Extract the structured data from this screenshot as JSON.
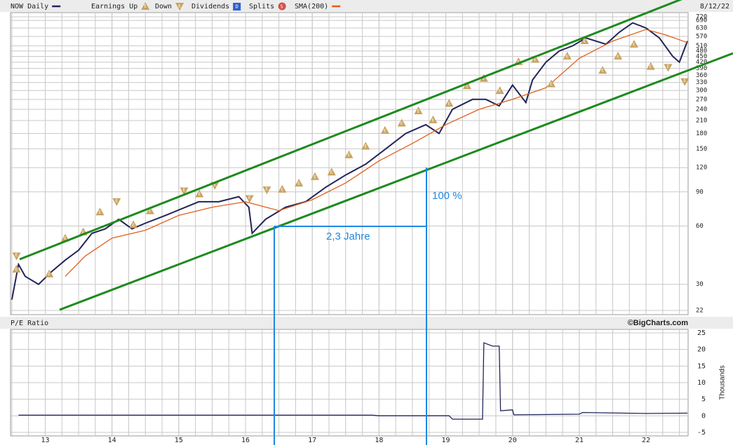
{
  "chart_data": [
    {
      "type": "line",
      "log_scale": true,
      "grid": true,
      "date": "8/12/22",
      "earnings_symbol": "E",
      "legend_extra": [
        {
          "name": "Dividends",
          "symbol": "D",
          "color": "#2f5fd0"
        },
        {
          "name": "Splits",
          "symbol": "S",
          "color": "#d0504a"
        }
      ],
      "annotations": [
        "100 %",
        "2,3 Jahre"
      ],
      "xlim": [
        12.48,
        22.63
      ],
      "xticks": [
        13,
        14,
        15,
        16,
        17,
        18,
        19,
        20,
        21,
        22
      ],
      "ylim": [
        22,
        720
      ],
      "yticks": [
        22,
        30,
        60,
        90,
        120,
        150,
        180,
        210,
        240,
        270,
        300,
        330,
        360,
        390,
        420,
        450,
        480,
        510,
        570,
        630,
        690,
        720
      ],
      "series": [
        {
          "name": "NOW Daily",
          "color": "#22245a",
          "marker": "line",
          "x": [
            12.5,
            12.6,
            12.7,
            12.9,
            13.1,
            13.3,
            13.5,
            13.7,
            13.9,
            14.1,
            14.3,
            14.5,
            14.8,
            15.1,
            15.3,
            15.6,
            15.9,
            16.05,
            16.1,
            16.3,
            16.6,
            16.9,
            17.2,
            17.5,
            17.8,
            18.1,
            18.4,
            18.7,
            18.9,
            19.1,
            19.4,
            19.6,
            19.8,
            20.0,
            20.2,
            20.3,
            20.5,
            20.7,
            20.9,
            21.1,
            21.4,
            21.6,
            21.8,
            22.0,
            22.2,
            22.4,
            22.5,
            22.62
          ],
          "values": [
            25,
            38,
            33,
            30,
            35,
            40,
            45,
            55,
            58,
            65,
            58,
            62,
            68,
            75,
            80,
            80,
            85,
            75,
            55,
            65,
            75,
            80,
            95,
            110,
            125,
            150,
            180,
            200,
            180,
            240,
            270,
            270,
            250,
            320,
            260,
            340,
            420,
            480,
            510,
            560,
            520,
            600,
            670,
            630,
            560,
            450,
            420,
            540
          ]
        },
        {
          "name": "SMA(200)",
          "color": "#e0601c",
          "marker": "line",
          "x": [
            13.3,
            13.6,
            14.0,
            14.5,
            15.0,
            15.5,
            16.0,
            16.5,
            17.0,
            17.5,
            18.0,
            18.5,
            19.0,
            19.5,
            20.0,
            20.5,
            21.0,
            21.5,
            22.0,
            22.3,
            22.62
          ],
          "values": [
            33,
            42,
            52,
            57,
            68,
            75,
            80,
            72,
            82,
            100,
            130,
            160,
            200,
            240,
            270,
            310,
            440,
            540,
            620,
            580,
            530
          ]
        },
        {
          "name": "Earnings Up",
          "color": "#c9a25e",
          "marker": "up",
          "x": [
            12.57,
            13.06,
            13.3,
            13.57,
            13.82,
            14.32,
            14.57,
            15.31,
            16.55,
            16.8,
            17.04,
            17.29,
            17.55,
            17.8,
            18.09,
            18.34,
            18.59,
            18.81,
            19.05,
            19.32,
            19.57,
            19.81,
            20.09,
            20.34,
            20.58,
            20.82,
            21.08,
            21.35,
            21.58,
            21.82,
            22.07
          ],
          "values": [
            36,
            34,
            52,
            56,
            71,
            61,
            72,
            88,
            93,
            100,
            108,
            114,
            140,
            155,
            187,
            204,
            236,
            212,
            258,
            318,
            347,
            300,
            423,
            435,
            325,
            452,
            543,
            382,
            452,
            521,
            400
          ]
        },
        {
          "name": "Down",
          "color": "#c9a25e",
          "marker": "down",
          "x": [
            12.57,
            14.07,
            15.08,
            15.54,
            16.06,
            16.32,
            22.33,
            22.58
          ],
          "values": [
            42,
            80,
            91,
            97,
            83,
            92,
            394,
            333
          ]
        }
      ]
    },
    {
      "type": "line",
      "title": "P/E Ratio",
      "credit": "©BigCharts.com",
      "ylabel": "Thousands",
      "grid": true,
      "xlim": [
        12.48,
        22.63
      ],
      "xticks": [
        13,
        14,
        15,
        16,
        17,
        18,
        19,
        20,
        21,
        22
      ],
      "ylim": [
        -5,
        25
      ],
      "yticks": [
        -5,
        0,
        5,
        10,
        15,
        20,
        25
      ],
      "series": [
        {
          "name": "P/E Ratio",
          "color": "#22245a",
          "marker": "line",
          "x": [
            12.6,
            17.9,
            18.0,
            19.05,
            19.1,
            19.55,
            19.57,
            19.7,
            19.8,
            19.82,
            20.0,
            20.02,
            21.0,
            21.05,
            22.0,
            22.62
          ],
          "values": [
            0.2,
            0.2,
            0,
            0,
            -1,
            -1,
            22,
            21,
            21,
            1.5,
            1.8,
            0.3,
            0.5,
            1,
            0.7,
            0.8
          ]
        }
      ]
    }
  ]
}
